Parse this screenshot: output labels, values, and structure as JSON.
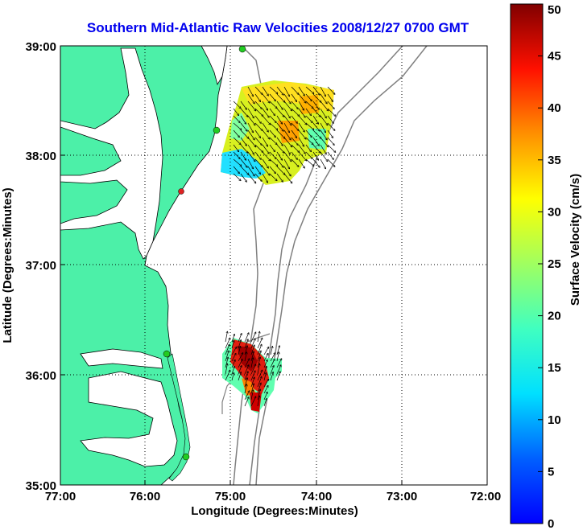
{
  "title": "Southern Mid-Atlantic Raw Velocities 2008/12/27 0700 GMT",
  "axes": {
    "xlabel": "Longitude (Degrees:Minutes)",
    "ylabel": "Latitude (Degrees:Minutes)",
    "x_ticks": [
      "77:00",
      "76:00",
      "75:00",
      "74:00",
      "73:00",
      "72:00"
    ],
    "y_ticks": [
      "39:00",
      "38:00",
      "37:00",
      "36:00",
      "35:00"
    ],
    "x_range": [
      -77.0,
      -72.0
    ],
    "y_range": [
      35.0,
      39.0
    ],
    "grid": "dotted"
  },
  "colorbar": {
    "label": "Surface Velocity (cm/s)",
    "ticks": [
      "0",
      "5",
      "10",
      "15",
      "20",
      "25",
      "30",
      "35",
      "40",
      "45",
      "50"
    ],
    "range": [
      0,
      50
    ],
    "colormap": "jet"
  },
  "colors": {
    "land": "#4cf0a8",
    "water": "#ffffff",
    "title": "#0000ee",
    "bathymetry": "#808080",
    "station_green": "#22cc22",
    "station_red": "#dd2222"
  },
  "stations": [
    {
      "status": "active"
    },
    {
      "status": "active"
    },
    {
      "status": "inactive"
    },
    {
      "status": "active"
    },
    {
      "status": "active"
    }
  ]
}
